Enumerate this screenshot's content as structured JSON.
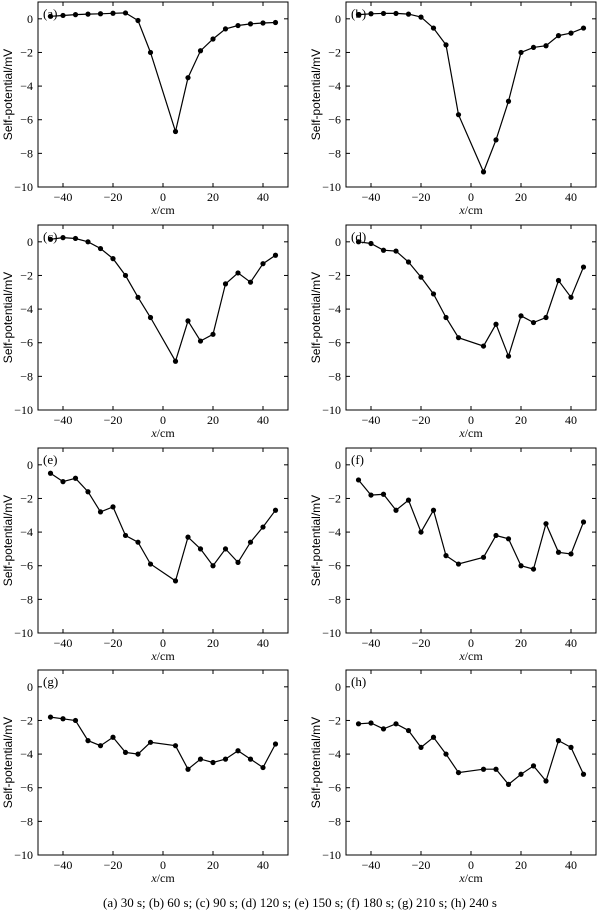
{
  "caption": "(a) 30 s; (b) 60 s; (c) 90 s; (d) 120 s; (e) 150 s; (f) 180 s; (g) 210 s; (h) 240 s",
  "chart_data": [
    {
      "type": "line",
      "panel_label": "(a)",
      "xlabel_var": "x",
      "xlabel_unit": "/cm",
      "ylabel": "Self-potential/mV",
      "xlim": [
        -50,
        50
      ],
      "ylim": [
        -10,
        1
      ],
      "xticks": [
        -40,
        -20,
        0,
        20,
        40
      ],
      "yticks": [
        0,
        -2,
        -4,
        -6,
        -8,
        -10
      ],
      "x": [
        -45,
        -40,
        -35,
        -30,
        -25,
        -20,
        -15,
        -10,
        -5,
        5,
        10,
        15,
        20,
        25,
        30,
        35,
        40,
        45
      ],
      "y": [
        0.15,
        0.2,
        0.25,
        0.28,
        0.3,
        0.33,
        0.35,
        -0.1,
        -2.0,
        -6.7,
        -3.5,
        -1.9,
        -1.2,
        -0.6,
        -0.4,
        -0.3,
        -0.25,
        -0.22
      ]
    },
    {
      "type": "line",
      "panel_label": "(b)",
      "xlabel_var": "x",
      "xlabel_unit": "/cm",
      "ylabel": "Self-potential/mV",
      "xlim": [
        -50,
        50
      ],
      "ylim": [
        -10,
        1
      ],
      "xticks": [
        -40,
        -20,
        0,
        20,
        40
      ],
      "yticks": [
        0,
        -2,
        -4,
        -6,
        -8,
        -10
      ],
      "x": [
        -45,
        -40,
        -35,
        -30,
        -25,
        -20,
        -15,
        -10,
        -5,
        5,
        10,
        15,
        20,
        25,
        30,
        35,
        40,
        45
      ],
      "y": [
        0.25,
        0.3,
        0.32,
        0.32,
        0.28,
        0.1,
        -0.55,
        -1.55,
        -5.7,
        -9.1,
        -7.2,
        -4.9,
        -2.0,
        -1.7,
        -1.6,
        -1.0,
        -0.85,
        -0.55
      ]
    },
    {
      "type": "line",
      "panel_label": "(c)",
      "xlabel_var": "x",
      "xlabel_unit": "/cm",
      "ylabel": "Self-potential/mV",
      "xlim": [
        -50,
        50
      ],
      "ylim": [
        -10,
        1
      ],
      "xticks": [
        -40,
        -20,
        0,
        20,
        40
      ],
      "yticks": [
        0,
        -2,
        -4,
        -6,
        -8,
        -10
      ],
      "x": [
        -45,
        -40,
        -35,
        -30,
        -25,
        -20,
        -15,
        -10,
        -5,
        5,
        10,
        15,
        20,
        25,
        30,
        35,
        40,
        45
      ],
      "y": [
        0.15,
        0.25,
        0.2,
        0.0,
        -0.4,
        -1.0,
        -2.0,
        -3.3,
        -4.5,
        -7.1,
        -4.7,
        -5.9,
        -5.5,
        -2.5,
        -1.85,
        -2.4,
        -1.3,
        -0.8
      ]
    },
    {
      "type": "line",
      "panel_label": "(d)",
      "xlabel_var": "x",
      "xlabel_unit": "/cm",
      "ylabel": "Self-potential/mV",
      "xlim": [
        -50,
        50
      ],
      "ylim": [
        -10,
        1
      ],
      "xticks": [
        -40,
        -20,
        0,
        20,
        40
      ],
      "yticks": [
        0,
        -2,
        -4,
        -6,
        -8,
        -10
      ],
      "x": [
        -45,
        -40,
        -35,
        -30,
        -25,
        -20,
        -15,
        -10,
        -5,
        5,
        10,
        15,
        20,
        25,
        30,
        35,
        40,
        45
      ],
      "y": [
        0.0,
        -0.1,
        -0.5,
        -0.55,
        -1.2,
        -2.1,
        -3.1,
        -4.5,
        -5.7,
        -6.2,
        -4.9,
        -6.8,
        -4.4,
        -4.8,
        -4.5,
        -2.3,
        -3.3,
        -1.5
      ]
    },
    {
      "type": "line",
      "panel_label": "(e)",
      "xlabel_var": "x",
      "xlabel_unit": "/cm",
      "ylabel": "Self-potential/mV",
      "xlim": [
        -50,
        50
      ],
      "ylim": [
        -10,
        1
      ],
      "xticks": [
        -40,
        -20,
        0,
        20,
        40
      ],
      "yticks": [
        0,
        -2,
        -4,
        -6,
        -8,
        -10
      ],
      "x": [
        -45,
        -40,
        -35,
        -30,
        -25,
        -20,
        -15,
        -10,
        -5,
        5,
        10,
        15,
        20,
        25,
        30,
        35,
        40,
        45
      ],
      "y": [
        -0.5,
        -1.0,
        -0.8,
        -1.6,
        -2.8,
        -2.5,
        -4.2,
        -4.6,
        -5.9,
        -6.9,
        -4.3,
        -5.0,
        -6.0,
        -5.0,
        -5.8,
        -4.6,
        -3.7,
        -2.7
      ]
    },
    {
      "type": "line",
      "panel_label": "(f)",
      "xlabel_var": "x",
      "xlabel_unit": "/cm",
      "ylabel": "Self-potential/mV",
      "xlim": [
        -50,
        50
      ],
      "ylim": [
        -10,
        1
      ],
      "xticks": [
        -40,
        -20,
        0,
        20,
        40
      ],
      "yticks": [
        0,
        -2,
        -4,
        -6,
        -8,
        -10
      ],
      "x": [
        -45,
        -40,
        -35,
        -30,
        -25,
        -20,
        -15,
        -10,
        -5,
        5,
        10,
        15,
        20,
        25,
        30,
        35,
        40,
        45
      ],
      "y": [
        -0.9,
        -1.8,
        -1.75,
        -2.7,
        -2.1,
        -4.0,
        -2.7,
        -5.4,
        -5.9,
        -5.5,
        -4.2,
        -4.4,
        -6.0,
        -6.2,
        -3.5,
        -5.2,
        -5.3,
        -3.4
      ]
    },
    {
      "type": "line",
      "panel_label": "(g)",
      "xlabel_var": "x",
      "xlabel_unit": "/cm",
      "ylabel": "Self-potential/mV",
      "xlim": [
        -50,
        50
      ],
      "ylim": [
        -10,
        1
      ],
      "xticks": [
        -40,
        -20,
        0,
        20,
        40
      ],
      "yticks": [
        0,
        -2,
        -4,
        -6,
        -8,
        -10
      ],
      "x": [
        -45,
        -40,
        -35,
        -30,
        -25,
        -20,
        -15,
        -10,
        -5,
        5,
        10,
        15,
        20,
        25,
        30,
        35,
        40,
        45
      ],
      "y": [
        -1.8,
        -1.9,
        -2.0,
        -3.2,
        -3.5,
        -3.0,
        -3.9,
        -4.0,
        -3.3,
        -3.5,
        -4.9,
        -4.3,
        -4.5,
        -4.3,
        -3.8,
        -4.3,
        -4.8,
        -3.4
      ]
    },
    {
      "type": "line",
      "panel_label": "(h)",
      "xlabel_var": "x",
      "xlabel_unit": "/cm",
      "ylabel": "Self-potential/mV",
      "xlim": [
        -50,
        50
      ],
      "ylim": [
        -10,
        1
      ],
      "xticks": [
        -40,
        -20,
        0,
        20,
        40
      ],
      "yticks": [
        0,
        -2,
        -4,
        -6,
        -8,
        -10
      ],
      "x": [
        -45,
        -40,
        -35,
        -30,
        -25,
        -20,
        -15,
        -10,
        -5,
        5,
        10,
        15,
        20,
        25,
        30,
        35,
        40,
        45
      ],
      "y": [
        -2.2,
        -2.15,
        -2.5,
        -2.2,
        -2.6,
        -3.6,
        -3.0,
        -4.0,
        -5.1,
        -4.9,
        -4.9,
        -5.8,
        -5.2,
        -4.7,
        -5.6,
        -3.2,
        -3.6,
        -5.2
      ]
    }
  ]
}
